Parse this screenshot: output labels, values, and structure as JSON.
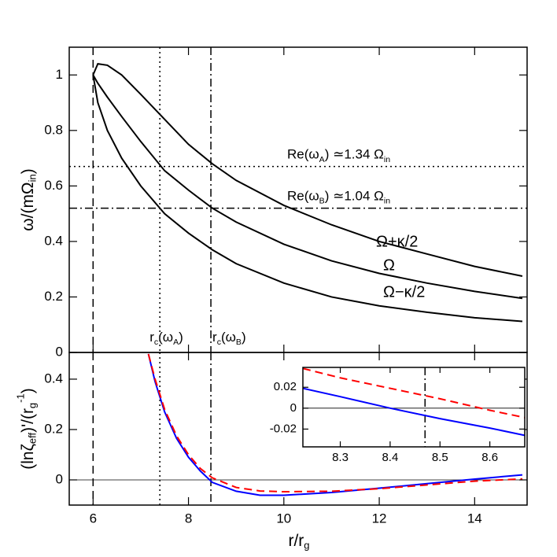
{
  "chart_data": [
    {
      "type": "line",
      "ylabel": [
        {
          "text": "ω/(mΩ"
        },
        {
          "sub": "in"
        },
        {
          "text": ")"
        }
      ],
      "xlim": [
        5.5,
        15.1
      ],
      "ylim": [
        0,
        1.1
      ],
      "xticks": [
        6,
        8,
        10,
        12,
        14
      ],
      "yticks": [
        0,
        0.2,
        0.4,
        0.6,
        0.8,
        1
      ],
      "x": [
        6,
        6.1,
        6.3,
        6.6,
        7,
        7.5,
        8,
        8.5,
        9,
        10,
        11,
        12,
        13,
        14,
        15
      ],
      "series": [
        {
          "name": "Ω+κ/2",
          "color": "#000000",
          "values": [
            1.0,
            1.04,
            1.035,
            1.0,
            0.93,
            0.84,
            0.75,
            0.68,
            0.62,
            0.53,
            0.46,
            0.4,
            0.355,
            0.31,
            0.275
          ]
        },
        {
          "name": "Ω",
          "color": "#000000",
          "values": [
            1.0,
            0.97,
            0.92,
            0.85,
            0.76,
            0.655,
            0.585,
            0.52,
            0.47,
            0.39,
            0.33,
            0.285,
            0.25,
            0.22,
            0.195
          ]
        },
        {
          "name": "Ω−κ/2",
          "color": "#000000",
          "values": [
            1.0,
            0.9,
            0.8,
            0.7,
            0.6,
            0.5,
            0.43,
            0.37,
            0.32,
            0.25,
            0.2,
            0.168,
            0.145,
            0.125,
            0.112
          ]
        }
      ],
      "hlines": [
        {
          "value": 0.67,
          "style": "dotted",
          "label": [
            {
              "text": "Re(ω"
            },
            {
              "sub": "A"
            },
            {
              "text": ") ≃1.34 Ω"
            },
            {
              "sub": "in"
            }
          ]
        },
        {
          "value": 0.52,
          "style": "dashdot",
          "label": [
            {
              "text": "Re(ω"
            },
            {
              "sub": "B"
            },
            {
              "text": ") ≃1.04 Ω"
            },
            {
              "sub": "in"
            }
          ]
        }
      ],
      "vlines": [
        {
          "value": 6,
          "style": "dashed"
        },
        {
          "value": 7.4,
          "style": "dotted",
          "label": [
            {
              "text": "r"
            },
            {
              "sub": "c"
            },
            {
              "text": "(ω"
            },
            {
              "sub": "A"
            },
            {
              "text": ")"
            }
          ]
        },
        {
          "value": 8.47,
          "style": "dashdot",
          "label": [
            {
              "text": "r"
            },
            {
              "sub": "c"
            },
            {
              "text": "(ω"
            },
            {
              "sub": "B"
            },
            {
              "text": ")"
            }
          ]
        }
      ]
    },
    {
      "type": "line",
      "xlabel": [
        {
          "text": "r/r"
        },
        {
          "sub": "g"
        }
      ],
      "ylabel": [
        {
          "text": "(lnζ"
        },
        {
          "sub": "eff"
        },
        {
          "text": ")'/(r"
        },
        {
          "sub": "g"
        },
        {
          "sup": "-1"
        },
        {
          "text": ")"
        }
      ],
      "xlim": [
        5.5,
        15.1
      ],
      "ylim": [
        -0.1,
        0.506
      ],
      "xticks": [
        6,
        8,
        10,
        12,
        14
      ],
      "yticks": [
        0,
        0.2,
        0.4
      ],
      "x": [
        7.16,
        7.3,
        7.5,
        7.75,
        8,
        8.25,
        8.5,
        9,
        9.5,
        10,
        11,
        12,
        13,
        14,
        15
      ],
      "series": [
        {
          "color": "#0000ff",
          "style": "solid",
          "values": [
            0.5,
            0.39,
            0.27,
            0.165,
            0.09,
            0.035,
            -0.01,
            -0.045,
            -0.061,
            -0.061,
            -0.05,
            -0.033,
            -0.015,
            0.003,
            0.02
          ]
        },
        {
          "color": "#ff0000",
          "style": "dashed",
          "values": [
            0.5,
            0.4,
            0.28,
            0.175,
            0.1,
            0.045,
            0.008,
            -0.03,
            -0.044,
            -0.047,
            -0.045,
            -0.035,
            -0.02,
            -0.005,
            0.004
          ]
        }
      ],
      "hlines": [
        {
          "value": 0,
          "style": "thin"
        }
      ],
      "vlines": [
        {
          "value": 6,
          "style": "dashed"
        },
        {
          "value": 7.4,
          "style": "dotted"
        },
        {
          "value": 8.47,
          "style": "dashdot"
        }
      ]
    },
    {
      "type": "line",
      "xlim": [
        8.225,
        8.67
      ],
      "ylim": [
        -0.037,
        0.039
      ],
      "xticks": [
        8.3,
        8.4,
        8.5,
        8.6
      ],
      "yticks": [
        0.02,
        0,
        -0.02
      ],
      "x": [
        8.225,
        8.3,
        8.4,
        8.5,
        8.6,
        8.67
      ],
      "series": [
        {
          "color": "#0000ff",
          "style": "solid",
          "values": [
            0.019,
            0.011,
            0.0,
            -0.01,
            -0.019,
            -0.026
          ]
        },
        {
          "color": "#ff0000",
          "style": "dashed",
          "values": [
            0.038,
            0.029,
            0.019,
            0.009,
            -0.002,
            -0.009
          ]
        }
      ],
      "hlines": [
        {
          "value": 0,
          "style": "thin"
        }
      ],
      "vlines": [
        {
          "value": 8.47,
          "style": "dashdot"
        }
      ]
    }
  ]
}
